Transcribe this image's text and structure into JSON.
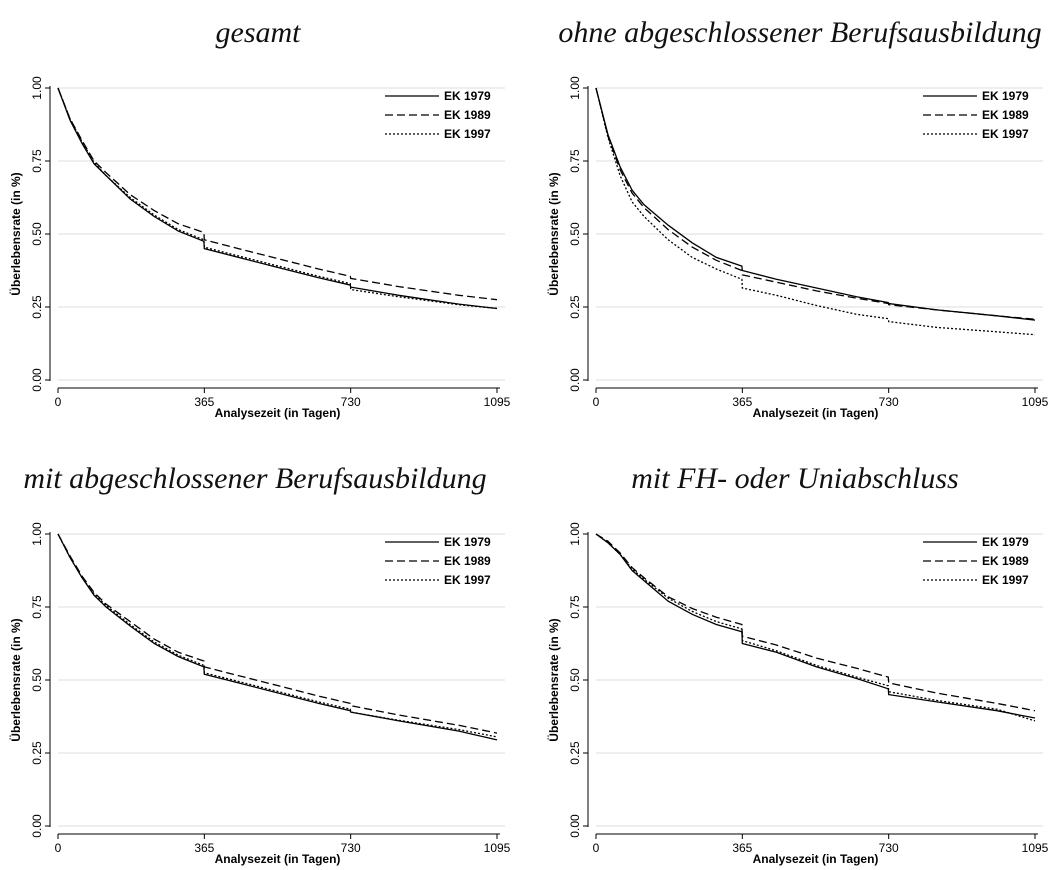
{
  "chart_data": [
    {
      "type": "line",
      "title": "gesamt",
      "xlabel": "Analysezeit (in Tagen)",
      "ylabel": "Überlebensrate (in %)",
      "xlim": [
        0,
        1095
      ],
      "ylim": [
        0,
        1
      ],
      "xticks": [
        0,
        365,
        730,
        1095
      ],
      "yticks": [
        0.0,
        0.25,
        0.5,
        0.75,
        1.0
      ],
      "ytick_labels": [
        "0.00",
        "0.25",
        "0.50",
        "0.75",
        "1.00"
      ],
      "grid": true,
      "legend_position": "top-right",
      "series": [
        {
          "name": "EK 1979",
          "style": "solid",
          "x": [
            0,
            30,
            60,
            90,
            120,
            180,
            240,
            300,
            364,
            365,
            450,
            550,
            650,
            729,
            730,
            850,
            1000,
            1095
          ],
          "y": [
            1.0,
            0.89,
            0.81,
            0.74,
            0.7,
            0.62,
            0.56,
            0.51,
            0.475,
            0.45,
            0.42,
            0.385,
            0.35,
            0.325,
            0.318,
            0.29,
            0.26,
            0.245
          ]
        },
        {
          "name": "EK 1989",
          "style": "dashed",
          "x": [
            0,
            30,
            60,
            90,
            120,
            180,
            240,
            300,
            364,
            365,
            450,
            550,
            650,
            729,
            730,
            850,
            1000,
            1095
          ],
          "y": [
            1.0,
            0.895,
            0.82,
            0.75,
            0.71,
            0.635,
            0.58,
            0.535,
            0.505,
            0.48,
            0.45,
            0.415,
            0.38,
            0.355,
            0.348,
            0.32,
            0.29,
            0.275
          ]
        },
        {
          "name": "EK 1997",
          "style": "dotted",
          "x": [
            0,
            30,
            60,
            90,
            120,
            180,
            240,
            300,
            364,
            365,
            450,
            550,
            650,
            729,
            730,
            850,
            1000,
            1095
          ],
          "y": [
            1.0,
            0.895,
            0.815,
            0.745,
            0.7,
            0.625,
            0.565,
            0.515,
            0.48,
            0.455,
            0.425,
            0.39,
            0.355,
            0.33,
            0.31,
            0.285,
            0.258,
            0.245
          ]
        }
      ]
    },
    {
      "type": "line",
      "title": "ohne abgeschlossener Berufsausbildung",
      "xlabel": "Analysezeit (in Tagen)",
      "ylabel": "Überlebensrate (in %)",
      "xlim": [
        0,
        1095
      ],
      "ylim": [
        0,
        1
      ],
      "xticks": [
        0,
        365,
        730,
        1095
      ],
      "yticks": [
        0.0,
        0.25,
        0.5,
        0.75,
        1.0
      ],
      "ytick_labels": [
        "0.00",
        "0.25",
        "0.50",
        "0.75",
        "1.00"
      ],
      "grid": true,
      "legend_position": "top-right",
      "series": [
        {
          "name": "EK 1979",
          "style": "solid",
          "x": [
            0,
            30,
            60,
            90,
            120,
            180,
            240,
            300,
            364,
            365,
            450,
            550,
            650,
            729,
            730,
            850,
            1000,
            1095
          ],
          "y": [
            1.0,
            0.84,
            0.73,
            0.65,
            0.6,
            0.53,
            0.47,
            0.42,
            0.39,
            0.375,
            0.345,
            0.315,
            0.285,
            0.265,
            0.262,
            0.24,
            0.22,
            0.205
          ]
        },
        {
          "name": "EK 1989",
          "style": "dashed",
          "x": [
            0,
            30,
            60,
            90,
            120,
            180,
            240,
            300,
            364,
            365,
            450,
            550,
            650,
            729,
            730,
            850,
            1000,
            1095
          ],
          "y": [
            1.0,
            0.835,
            0.72,
            0.64,
            0.59,
            0.515,
            0.455,
            0.41,
            0.375,
            0.36,
            0.335,
            0.305,
            0.28,
            0.262,
            0.258,
            0.24,
            0.22,
            0.208
          ]
        },
        {
          "name": "EK 1997",
          "style": "dotted",
          "x": [
            0,
            30,
            60,
            90,
            120,
            180,
            240,
            300,
            364,
            365,
            450,
            550,
            650,
            729,
            730,
            850,
            1000,
            1095
          ],
          "y": [
            1.0,
            0.83,
            0.7,
            0.61,
            0.56,
            0.48,
            0.42,
            0.38,
            0.345,
            0.315,
            0.29,
            0.255,
            0.225,
            0.21,
            0.2,
            0.18,
            0.165,
            0.155
          ]
        }
      ]
    },
    {
      "type": "line",
      "title": "mit abgeschlossener Berufsausbildung",
      "xlabel": "Analysezeit (in Tagen)",
      "ylabel": "Überlebensrate (in %)",
      "xlim": [
        0,
        1095
      ],
      "ylim": [
        0,
        1
      ],
      "xticks": [
        0,
        365,
        730,
        1095
      ],
      "yticks": [
        0.0,
        0.25,
        0.5,
        0.75,
        1.0
      ],
      "ytick_labels": [
        "0.00",
        "0.25",
        "0.50",
        "0.75",
        "1.00"
      ],
      "grid": true,
      "legend_position": "top-right",
      "series": [
        {
          "name": "EK 1979",
          "style": "solid",
          "x": [
            0,
            30,
            60,
            90,
            120,
            180,
            240,
            300,
            364,
            365,
            450,
            550,
            650,
            729,
            730,
            850,
            1000,
            1095
          ],
          "y": [
            1.0,
            0.92,
            0.85,
            0.79,
            0.75,
            0.685,
            0.625,
            0.58,
            0.545,
            0.52,
            0.49,
            0.455,
            0.42,
            0.395,
            0.39,
            0.36,
            0.325,
            0.295
          ]
        },
        {
          "name": "EK 1989",
          "style": "dashed",
          "x": [
            0,
            30,
            60,
            90,
            120,
            180,
            240,
            300,
            364,
            365,
            450,
            550,
            650,
            729,
            730,
            850,
            1000,
            1095
          ],
          "y": [
            1.0,
            0.925,
            0.855,
            0.8,
            0.76,
            0.7,
            0.64,
            0.595,
            0.565,
            0.545,
            0.515,
            0.48,
            0.445,
            0.42,
            0.412,
            0.38,
            0.345,
            0.318
          ]
        },
        {
          "name": "EK 1997",
          "style": "dotted",
          "x": [
            0,
            30,
            60,
            90,
            120,
            180,
            240,
            300,
            364,
            365,
            450,
            550,
            650,
            729,
            730,
            850,
            1000,
            1095
          ],
          "y": [
            1.0,
            0.92,
            0.85,
            0.795,
            0.755,
            0.69,
            0.63,
            0.585,
            0.55,
            0.525,
            0.495,
            0.46,
            0.425,
            0.4,
            0.39,
            0.362,
            0.33,
            0.305
          ]
        }
      ]
    },
    {
      "type": "line",
      "title": "mit FH- oder Uniabschluss",
      "xlabel": "Analysezeit (in Tagen)",
      "ylabel": "Überlebensrate (in %)",
      "xlim": [
        0,
        1095
      ],
      "ylim": [
        0,
        1
      ],
      "xticks": [
        0,
        365,
        730,
        1095
      ],
      "yticks": [
        0.0,
        0.25,
        0.5,
        0.75,
        1.0
      ],
      "ytick_labels": [
        "0.00",
        "0.25",
        "0.50",
        "0.75",
        "1.00"
      ],
      "grid": true,
      "legend_position": "top-right",
      "series": [
        {
          "name": "EK 1979",
          "style": "solid",
          "x": [
            0,
            30,
            60,
            90,
            120,
            180,
            240,
            300,
            364,
            365,
            450,
            550,
            650,
            729,
            730,
            850,
            1000,
            1095
          ],
          "y": [
            1.0,
            0.97,
            0.93,
            0.875,
            0.84,
            0.77,
            0.725,
            0.69,
            0.665,
            0.625,
            0.595,
            0.545,
            0.505,
            0.47,
            0.45,
            0.425,
            0.395,
            0.37
          ]
        },
        {
          "name": "EK 1989",
          "style": "dashed",
          "x": [
            0,
            30,
            60,
            90,
            120,
            180,
            240,
            300,
            364,
            365,
            450,
            550,
            650,
            729,
            730,
            850,
            1000,
            1095
          ],
          "y": [
            1.0,
            0.975,
            0.935,
            0.885,
            0.85,
            0.785,
            0.745,
            0.715,
            0.69,
            0.65,
            0.62,
            0.575,
            0.54,
            0.51,
            0.49,
            0.455,
            0.42,
            0.395
          ]
        },
        {
          "name": "EK 1997",
          "style": "dotted",
          "x": [
            0,
            30,
            60,
            90,
            120,
            180,
            240,
            300,
            364,
            365,
            450,
            550,
            650,
            729,
            730,
            850,
            1000,
            1095
          ],
          "y": [
            1.0,
            0.97,
            0.93,
            0.88,
            0.845,
            0.78,
            0.735,
            0.7,
            0.675,
            0.635,
            0.6,
            0.55,
            0.51,
            0.48,
            0.46,
            0.43,
            0.4,
            0.36
          ]
        }
      ]
    }
  ]
}
